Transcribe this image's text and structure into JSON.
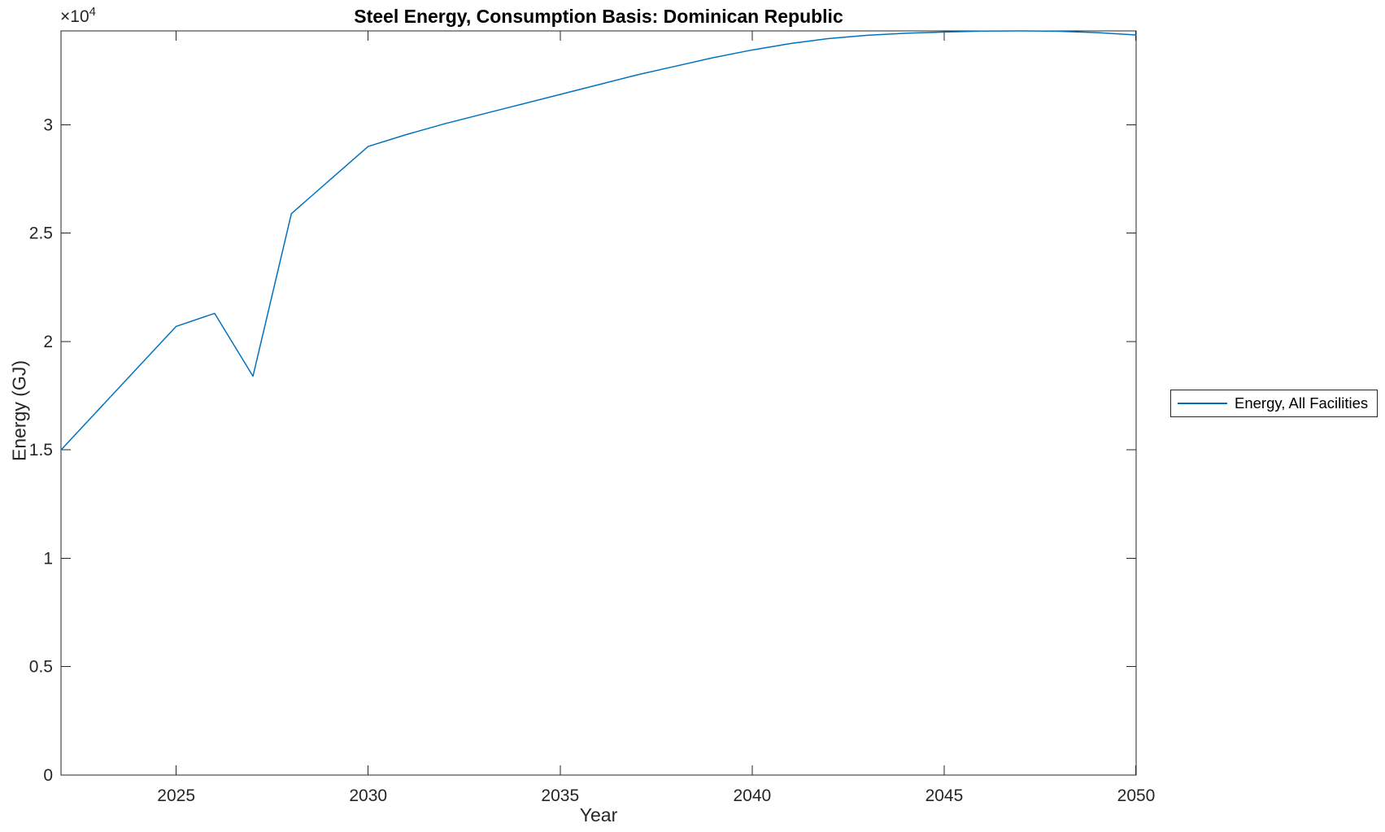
{
  "chart_data": {
    "type": "line",
    "title": "Steel Energy, Consumption Basis: Dominican Republic",
    "xlabel": "Year",
    "ylabel": "Energy (GJ)",
    "y_multiplier": {
      "base": "×10",
      "exp": "4"
    },
    "xlim": [
      2022,
      2050
    ],
    "ylim": [
      0,
      34330
    ],
    "x_ticks": [
      2025,
      2030,
      2035,
      2040,
      2045,
      2050
    ],
    "x_tick_labels": [
      "2025",
      "2030",
      "2035",
      "2040",
      "2045",
      "2050"
    ],
    "y_ticks": [
      0,
      5000,
      10000,
      15000,
      20000,
      25000,
      30000
    ],
    "y_tick_labels": [
      "0",
      "0.5",
      "1",
      "1.5",
      "2",
      "2.5",
      "3"
    ],
    "grid": false,
    "axes_color": "#262626",
    "background_color": "#ffffff",
    "legend_position": "right-outside",
    "series": [
      {
        "name": "Energy, All Facilities",
        "color": "#0072BD",
        "x": [
          2022,
          2023,
          2024,
          2025,
          2026,
          2027,
          2028,
          2029,
          2030,
          2031,
          2032,
          2033,
          2034,
          2035,
          2036,
          2037,
          2038,
          2039,
          2040,
          2041,
          2042,
          2043,
          2044,
          2045,
          2046,
          2047,
          2048,
          2049,
          2050
        ],
        "values": [
          15000,
          16900,
          18800,
          20700,
          21300,
          18400,
          25900,
          27450,
          29000,
          29550,
          30050,
          30500,
          30950,
          31400,
          31850,
          32300,
          32700,
          33100,
          33450,
          33750,
          33980,
          34130,
          34220,
          34280,
          34320,
          34330,
          34310,
          34250,
          34140
        ]
      }
    ]
  }
}
